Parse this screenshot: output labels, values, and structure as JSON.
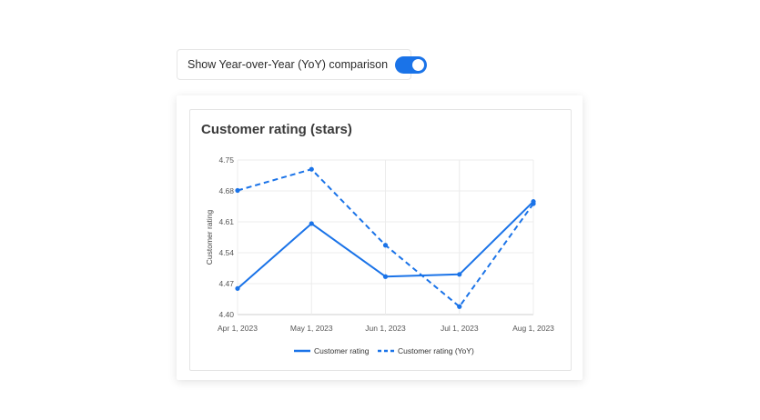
{
  "toggle": {
    "label": "Show Year-over-Year (YoY) comparison",
    "on": true
  },
  "colors": {
    "accent": "#1a73e8",
    "grid": "#ececec",
    "axis": "#cfcfcf"
  },
  "chart_data": {
    "type": "line",
    "title": "Customer rating (stars)",
    "xlabel": "",
    "ylabel": "Customer rating",
    "categories": [
      "Apr 1, 2023",
      "May 1, 2023",
      "Jun 1, 2023",
      "Jul 1, 2023",
      "Aug 1, 2023"
    ],
    "y_ticks": [
      "4.40",
      "4.47",
      "4.54",
      "4.61",
      "4.68",
      "4.75"
    ],
    "ylim": [
      4.4,
      4.75
    ],
    "grid": true,
    "legend_position": "bottom",
    "series": [
      {
        "name": "Customer rating",
        "style": "solid",
        "x": [
          "Apr 1, 2023",
          "May 1, 2023",
          "Jun 1, 2023",
          "Jul 1, 2023",
          "Aug 1, 2023"
        ],
        "values": [
          4.459,
          4.606,
          4.486,
          4.491,
          4.656
        ]
      },
      {
        "name": "Customer rating (YoY)",
        "style": "dashed",
        "x": [
          "Apr 1, 2023",
          "May 1, 2023",
          "Jun 1, 2023",
          "Jul 1, 2023",
          "Aug 1, 2023"
        ],
        "values": [
          4.681,
          4.729,
          4.557,
          4.418,
          4.651
        ]
      }
    ]
  }
}
